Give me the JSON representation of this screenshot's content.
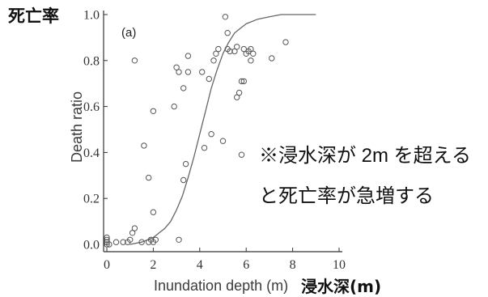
{
  "chart_data": {
    "type": "scatter",
    "panel_label": "(a)",
    "ylabel": "Death ratio",
    "ylabel_ja": "死亡率",
    "xlabel": "Inundation depth (m)",
    "xlabel_ja": "浸水深(m)",
    "annotation": [
      "※浸水深が 2m を超える",
      "と死亡率が急増する"
    ],
    "xlim": [
      0,
      10
    ],
    "ylim": [
      0,
      1
    ],
    "x_ticks": [
      0,
      2,
      4,
      6,
      8,
      10
    ],
    "x_tick_labels": [
      "0",
      "2",
      "4",
      "6",
      "8",
      "10"
    ],
    "y_ticks": [
      0,
      0.2,
      0.4,
      0.6,
      0.8,
      1.0
    ],
    "y_tick_labels": [
      "0.0",
      "0.2",
      "0.4",
      "0.6",
      "0.8",
      "1.0"
    ],
    "grid": false,
    "series": [
      {
        "type": "scatter",
        "x": [
          0.0,
          0.0,
          0.0,
          0.0,
          0.1,
          0.4,
          0.7,
          0.9,
          1.0,
          1.5,
          1.8,
          1.9,
          2.0,
          2.1,
          1.1,
          1.2,
          2.0,
          3.1,
          1.8,
          1.6,
          2.0,
          1.2,
          3.3,
          3.4,
          2.9,
          3.0,
          3.1,
          3.3,
          3.5,
          3.5,
          4.2,
          4.5,
          5.0,
          4.1,
          4.4,
          4.6,
          4.7,
          4.8,
          5.1,
          5.2,
          5.2,
          5.3,
          5.5,
          5.6,
          5.6,
          5.7,
          5.8,
          5.9,
          5.8,
          5.9,
          6.0,
          6.1,
          6.2,
          6.3,
          6.2,
          7.1,
          7.7
        ],
        "y": [
          0.0,
          0.01,
          0.02,
          0.03,
          0.0,
          0.01,
          0.01,
          0.01,
          0.02,
          0.01,
          0.01,
          0.02,
          0.01,
          0.02,
          0.05,
          0.07,
          0.14,
          0.02,
          0.29,
          0.43,
          0.58,
          0.8,
          0.28,
          0.35,
          0.6,
          0.77,
          0.75,
          0.68,
          0.82,
          0.75,
          0.42,
          0.48,
          0.45,
          0.75,
          0.72,
          0.8,
          0.83,
          0.85,
          0.99,
          0.92,
          0.85,
          0.84,
          0.84,
          0.86,
          0.64,
          0.66,
          0.71,
          0.71,
          0.39,
          0.85,
          0.83,
          0.84,
          0.8,
          0.83,
          0.85,
          0.81,
          0.88
        ]
      },
      {
        "type": "line",
        "x": [
          1.0,
          1.5,
          2.0,
          2.25,
          2.5,
          2.75,
          3.0,
          3.25,
          3.5,
          3.75,
          4.0,
          4.25,
          4.5,
          4.75,
          5.0,
          5.25,
          5.5,
          5.75,
          6.0,
          6.5,
          7.0,
          7.5,
          8.0,
          9.0
        ],
        "y": [
          0.0,
          0.01,
          0.03,
          0.05,
          0.07,
          0.1,
          0.15,
          0.21,
          0.29,
          0.38,
          0.48,
          0.58,
          0.68,
          0.76,
          0.83,
          0.88,
          0.92,
          0.94,
          0.96,
          0.98,
          0.99,
          1.0,
          1.0,
          1.0
        ]
      }
    ]
  },
  "colors": {
    "axis": "#333333",
    "marker": "#555555",
    "curve": "#666666"
  }
}
